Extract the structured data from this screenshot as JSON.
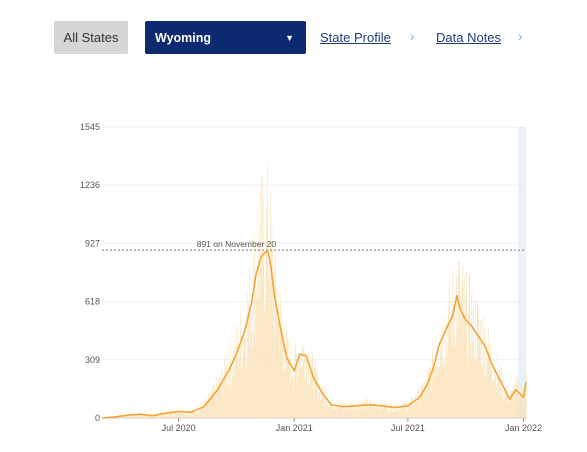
{
  "toolbar": {
    "all_states_label": "All States",
    "state_value": "Wyoming",
    "links": [
      {
        "label": "State Profile"
      },
      {
        "label": "Data Notes"
      }
    ]
  },
  "colors": {
    "select_bg": "#0b2a6f",
    "line": "#f2a536",
    "bars": "#f9dfae",
    "link": "#1f3c78"
  },
  "chart_data": {
    "type": "line",
    "title": "",
    "xlabel": "",
    "ylabel": "",
    "ylim": [
      0,
      1545
    ],
    "yticks": [
      0,
      309,
      618,
      927,
      1236,
      1545
    ],
    "x_tick_labels": [
      "Jul 2020",
      "Jan 2021",
      "Jul 2021",
      "Jan 2022"
    ],
    "annotation": {
      "label": "891 on November 20",
      "value": 891
    },
    "series": [
      {
        "x": [
          "2020-03-01",
          "2020-03-20",
          "2020-04-10",
          "2020-05-01",
          "2020-05-20",
          "2020-06-10",
          "2020-07-01",
          "2020-07-20",
          "2020-08-10",
          "2020-09-01",
          "2020-09-20",
          "2020-10-01",
          "2020-10-15",
          "2020-10-25",
          "2020-11-01",
          "2020-11-10",
          "2020-11-16",
          "2020-11-20",
          "2020-11-25",
          "2020-12-01",
          "2020-12-10",
          "2020-12-20",
          "2021-01-01",
          "2021-01-10",
          "2021-01-20",
          "2021-02-01",
          "2021-02-15",
          "2021-03-01",
          "2021-03-20",
          "2021-04-10",
          "2021-05-01",
          "2021-05-20",
          "2021-06-10",
          "2021-07-01",
          "2021-07-20",
          "2021-08-01",
          "2021-08-10",
          "2021-08-20",
          "2021-09-01",
          "2021-09-10",
          "2021-09-17",
          "2021-09-22",
          "2021-10-01",
          "2021-10-10",
          "2021-10-20",
          "2021-11-01",
          "2021-11-10",
          "2021-11-20",
          "2021-12-01",
          "2021-12-10",
          "2021-12-20",
          "2022-01-01",
          "2022-01-05"
        ],
        "values": [
          0,
          5,
          15,
          20,
          12,
          25,
          35,
          30,
          60,
          150,
          260,
          340,
          470,
          610,
          760,
          860,
          880,
          891,
          800,
          640,
          480,
          320,
          250,
          340,
          330,
          210,
          130,
          70,
          60,
          65,
          70,
          65,
          55,
          65,
          110,
          180,
          260,
          390,
          480,
          540,
          650,
          580,
          520,
          490,
          440,
          380,
          300,
          230,
          160,
          100,
          150,
          110,
          190
        ]
      }
    ]
  }
}
